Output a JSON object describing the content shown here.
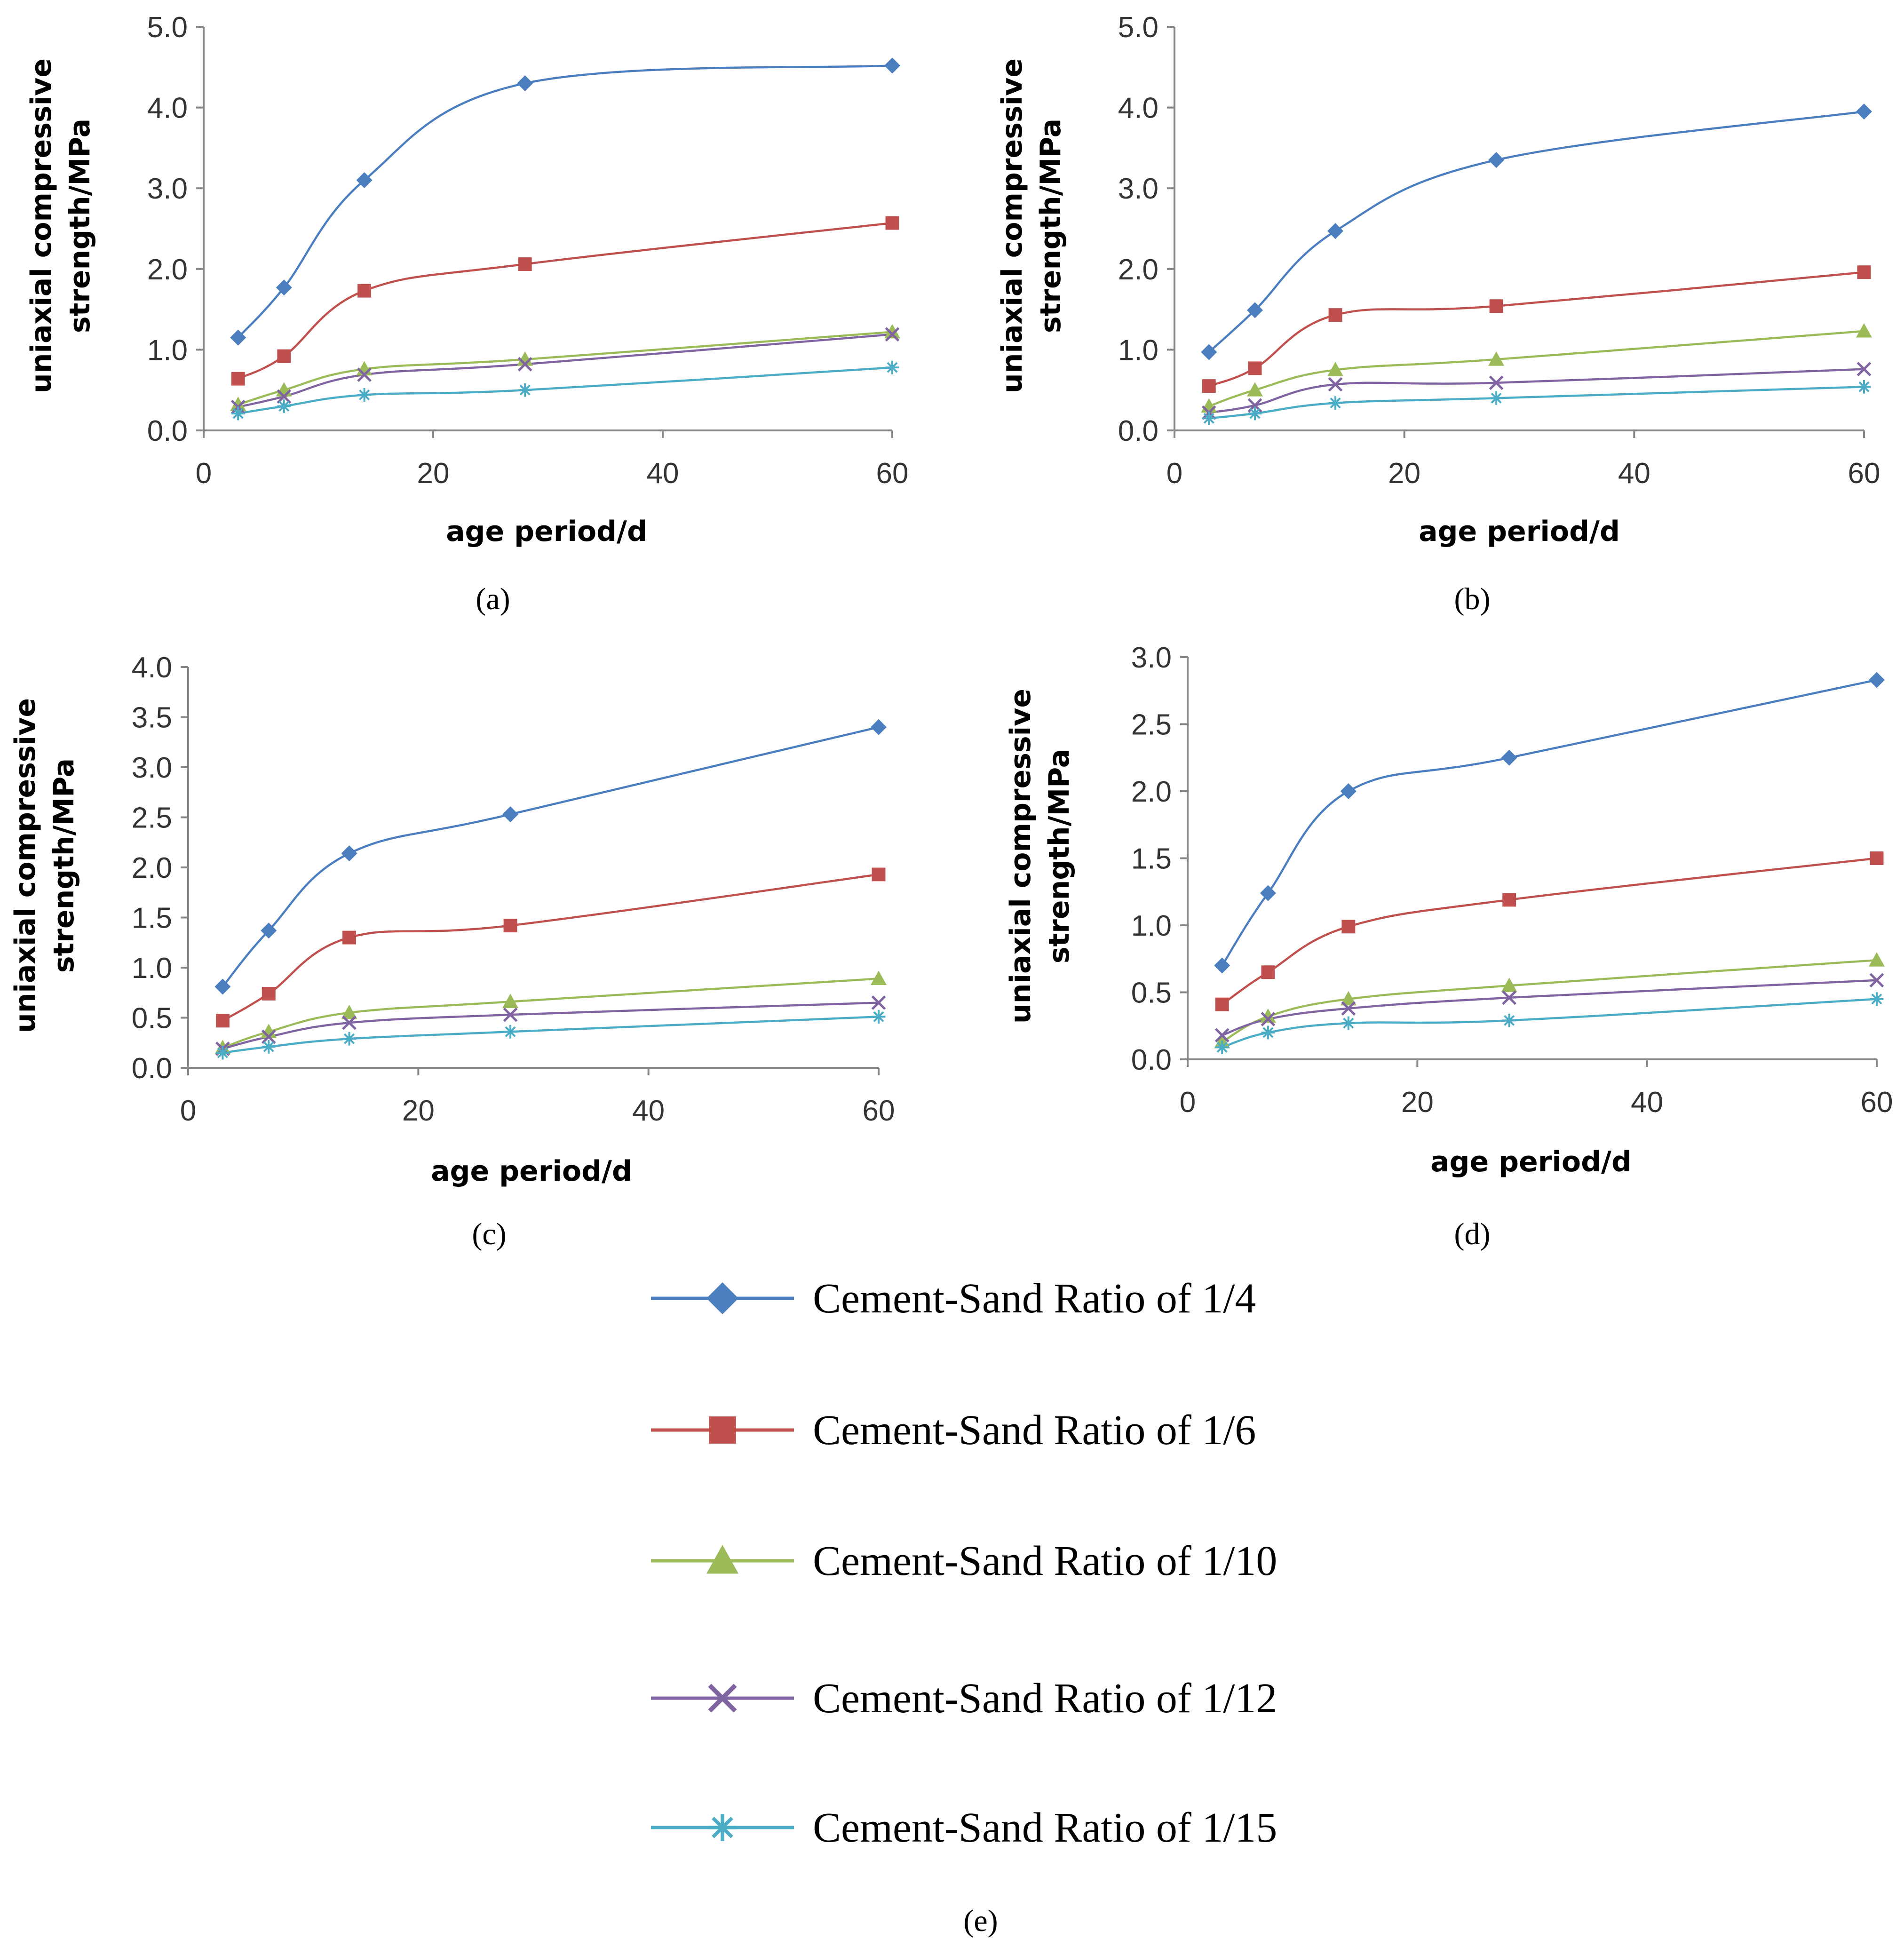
{
  "colors": {
    "ratio_1_4": "#4a7ebf",
    "ratio_1_6": "#c0504d",
    "ratio_1_10": "#9bbb59",
    "ratio_1_12": "#8064a2",
    "ratio_1_15": "#4bacc6",
    "axis": "#868686"
  },
  "legend": {
    "label": "(e)",
    "items": [
      {
        "name": "Cement-Sand Ratio of 1/4",
        "marker": "diamond",
        "color": "#4a7ebf"
      },
      {
        "name": "Cement-Sand Ratio of 1/6",
        "marker": "square",
        "color": "#c0504d"
      },
      {
        "name": "Cement-Sand Ratio of 1/10",
        "marker": "triangle",
        "color": "#9bbb59"
      },
      {
        "name": "Cement-Sand Ratio of 1/12",
        "marker": "x",
        "color": "#8064a2"
      },
      {
        "name": "Cement-Sand Ratio of 1/15",
        "marker": "star",
        "color": "#4bacc6"
      }
    ]
  },
  "chart_data": [
    {
      "type": "line",
      "label": "(a)",
      "xlabel": "age period/d",
      "ylabel_lines": [
        "uniaxial compressive",
        "strength/MPa"
      ],
      "xlim": [
        0,
        60
      ],
      "ylim": [
        0,
        5
      ],
      "xticks": [
        "0",
        "20",
        "40",
        "60"
      ],
      "yticks": [
        "0.0",
        "1.0",
        "2.0",
        "3.0",
        "4.0",
        "5.0"
      ],
      "grid": false,
      "x": [
        3,
        7,
        14,
        28,
        60
      ],
      "series": [
        {
          "name": "Cement-Sand Ratio of 1/4",
          "values": [
            1.15,
            1.77,
            3.1,
            4.3,
            4.52
          ]
        },
        {
          "name": "Cement-Sand Ratio of 1/6",
          "values": [
            0.64,
            0.92,
            1.73,
            2.06,
            2.57
          ]
        },
        {
          "name": "Cement-Sand Ratio of 1/10",
          "values": [
            0.32,
            0.5,
            0.76,
            0.88,
            1.22
          ]
        },
        {
          "name": "Cement-Sand Ratio of 1/12",
          "values": [
            0.29,
            0.42,
            0.69,
            0.82,
            1.19
          ]
        },
        {
          "name": "Cement-Sand Ratio of 1/15",
          "values": [
            0.21,
            0.3,
            0.44,
            0.5,
            0.78
          ]
        }
      ]
    },
    {
      "type": "line",
      "label": "(b)",
      "xlabel": "age period/d",
      "ylabel_lines": [
        "uniaxial compressive",
        "strength/MPa"
      ],
      "xlim": [
        0,
        60
      ],
      "ylim": [
        0,
        5
      ],
      "xticks": [
        "0",
        "20",
        "40",
        "60"
      ],
      "yticks": [
        "0.0",
        "1.0",
        "2.0",
        "3.0",
        "4.0",
        "5.0"
      ],
      "grid": false,
      "x": [
        3,
        7,
        14,
        28,
        60
      ],
      "series": [
        {
          "name": "Cement-Sand Ratio of 1/4",
          "values": [
            0.97,
            1.49,
            2.47,
            3.35,
            3.95
          ]
        },
        {
          "name": "Cement-Sand Ratio of 1/6",
          "values": [
            0.55,
            0.77,
            1.43,
            1.54,
            1.96
          ]
        },
        {
          "name": "Cement-Sand Ratio of 1/10",
          "values": [
            0.3,
            0.5,
            0.75,
            0.88,
            1.23
          ]
        },
        {
          "name": "Cement-Sand Ratio of 1/12",
          "values": [
            0.22,
            0.31,
            0.57,
            0.59,
            0.76
          ]
        },
        {
          "name": "Cement-Sand Ratio of 1/15",
          "values": [
            0.15,
            0.21,
            0.34,
            0.4,
            0.54
          ]
        }
      ]
    },
    {
      "type": "line",
      "label": "(c)",
      "xlabel": "age period/d",
      "ylabel_lines": [
        "uniaxial compressive",
        "strength/MPa"
      ],
      "xlim": [
        0,
        60
      ],
      "ylim": [
        0,
        4
      ],
      "xticks": [
        "0",
        "20",
        "40",
        "60"
      ],
      "yticks": [
        "0.0",
        "0.5",
        "1.0",
        "1.5",
        "2.0",
        "2.5",
        "3.0",
        "3.5",
        "4.0"
      ],
      "grid": false,
      "x": [
        3,
        7,
        14,
        28,
        60
      ],
      "series": [
        {
          "name": "Cement-Sand Ratio of 1/4",
          "values": [
            0.81,
            1.37,
            2.14,
            2.53,
            3.4
          ]
        },
        {
          "name": "Cement-Sand Ratio of 1/6",
          "values": [
            0.47,
            0.74,
            1.3,
            1.42,
            1.93
          ]
        },
        {
          "name": "Cement-Sand Ratio of 1/10",
          "values": [
            0.2,
            0.36,
            0.55,
            0.66,
            0.89
          ]
        },
        {
          "name": "Cement-Sand Ratio of 1/12",
          "values": [
            0.19,
            0.31,
            0.45,
            0.53,
            0.65
          ]
        },
        {
          "name": "Cement-Sand Ratio of 1/15",
          "values": [
            0.15,
            0.21,
            0.29,
            0.36,
            0.51
          ]
        }
      ]
    },
    {
      "type": "line",
      "label": "(d)",
      "xlabel": "age period/d",
      "ylabel_lines": [
        "uniaxial compressive",
        "strength/MPa"
      ],
      "xlim": [
        0,
        60
      ],
      "ylim": [
        0,
        3
      ],
      "xticks": [
        "0",
        "20",
        "40",
        "60"
      ],
      "yticks": [
        "0.0",
        "0.5",
        "1.0",
        "1.5",
        "2.0",
        "2.5",
        "3.0"
      ],
      "grid": false,
      "x": [
        3,
        7,
        14,
        28,
        60
      ],
      "series": [
        {
          "name": "Cement-Sand Ratio of 1/4",
          "values": [
            0.7,
            1.24,
            2.0,
            2.25,
            2.83
          ]
        },
        {
          "name": "Cement-Sand Ratio of 1/6",
          "values": [
            0.41,
            0.65,
            0.99,
            1.19,
            1.5
          ]
        },
        {
          "name": "Cement-Sand Ratio of 1/10",
          "values": [
            0.13,
            0.32,
            0.45,
            0.55,
            0.74
          ]
        },
        {
          "name": "Cement-Sand Ratio of 1/12",
          "values": [
            0.18,
            0.3,
            0.38,
            0.46,
            0.59
          ]
        },
        {
          "name": "Cement-Sand Ratio of 1/15",
          "values": [
            0.09,
            0.2,
            0.27,
            0.29,
            0.45
          ]
        }
      ]
    }
  ]
}
